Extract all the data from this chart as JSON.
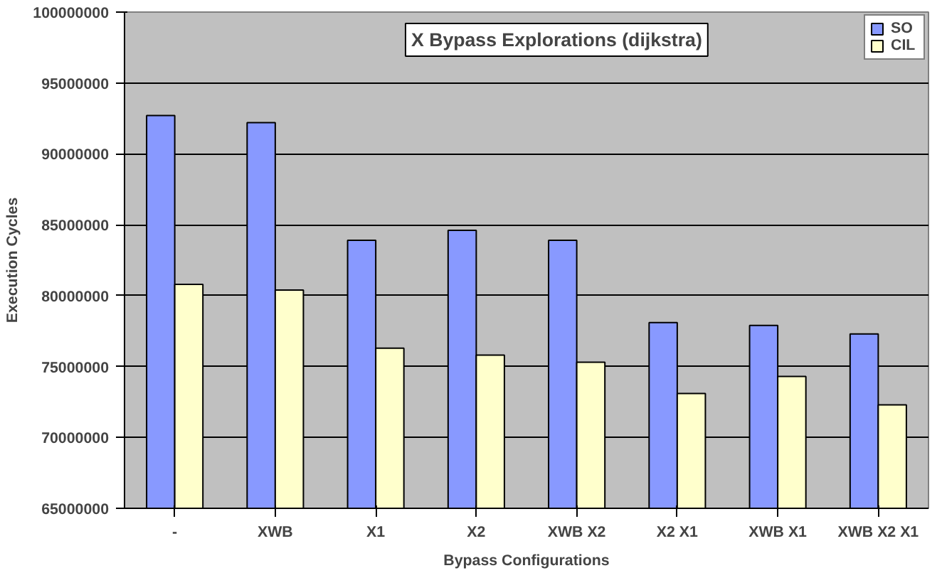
{
  "chart_data": {
    "type": "bar",
    "title": "X Bypass Explorations (dijkstra)",
    "xlabel": "Bypass Configurations",
    "ylabel": "Execution Cycles",
    "categories": [
      "-",
      "XWB",
      "X1",
      "X2",
      "XWB X2",
      "X2 X1",
      "XWB X1",
      "XWB X2 X1"
    ],
    "series": [
      {
        "name": "SO",
        "color": "#8899ff",
        "values": [
          92700000,
          92200000,
          83900000,
          84600000,
          83900000,
          78100000,
          77900000,
          77300000
        ]
      },
      {
        "name": "CIL",
        "color": "#ffffcc",
        "values": [
          80800000,
          80400000,
          76300000,
          75800000,
          75300000,
          73100000,
          74300000,
          72300000
        ]
      }
    ],
    "ylim": [
      65000000,
      100000000
    ],
    "yticks": [
      65000000,
      70000000,
      75000000,
      80000000,
      85000000,
      90000000,
      95000000,
      100000000
    ],
    "grid": "y",
    "legend": "top right"
  }
}
